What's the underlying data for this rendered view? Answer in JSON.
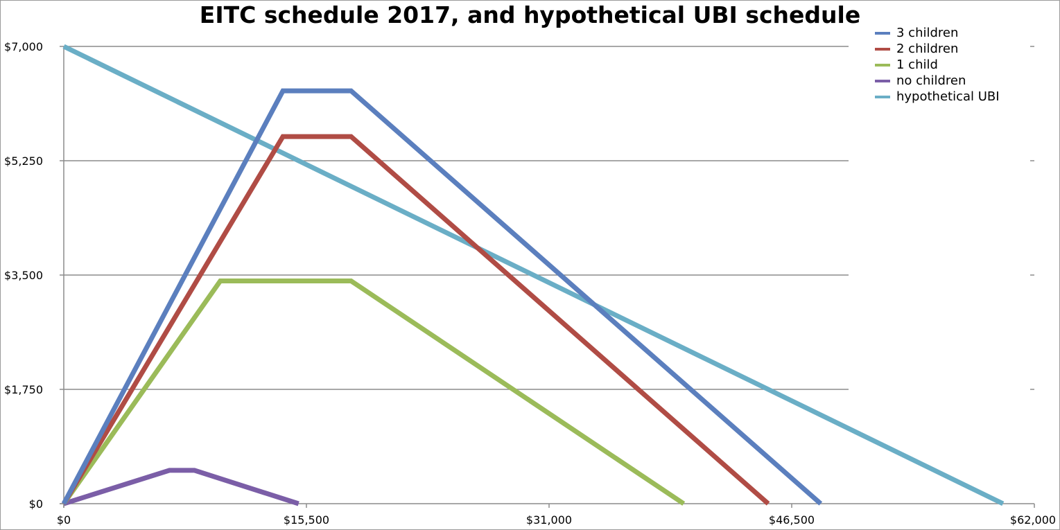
{
  "chart_data": {
    "type": "line",
    "title": "EITC schedule 2017, and hypothetical UBI schedule",
    "xlabel": "",
    "ylabel": "",
    "xlim": [
      0,
      62000
    ],
    "ylim": [
      0,
      7000
    ],
    "x_ticks": [
      0,
      15500,
      31000,
      46500,
      62000
    ],
    "x_tick_labels": [
      "$0",
      "$15,500",
      "$31,000",
      "$46,500",
      "$62,000"
    ],
    "y_ticks": [
      0,
      1750,
      3500,
      5250,
      7000
    ],
    "y_tick_labels": [
      "$0",
      "$1,750",
      "$3,500",
      "$5,250",
      "$7,000"
    ],
    "grid": "horizontal",
    "legend_position": "top-right",
    "series": [
      {
        "name": "3 children",
        "color": "#5b7fbe",
        "points": [
          [
            0,
            0
          ],
          [
            14000,
            6320
          ],
          [
            18350,
            6320
          ],
          [
            48350,
            0
          ]
        ]
      },
      {
        "name": "2 children",
        "color": "#b04c45",
        "points": [
          [
            0,
            0
          ],
          [
            14000,
            5620
          ],
          [
            18350,
            5620
          ],
          [
            45000,
            0
          ]
        ]
      },
      {
        "name": "1 child",
        "color": "#9bbb59",
        "points": [
          [
            0,
            0
          ],
          [
            10000,
            3410
          ],
          [
            18350,
            3410
          ],
          [
            39600,
            0
          ]
        ]
      },
      {
        "name": "no children",
        "color": "#7b5ea7",
        "points": [
          [
            0,
            0
          ],
          [
            6750,
            510
          ],
          [
            8350,
            510
          ],
          [
            15000,
            0
          ]
        ]
      },
      {
        "name": "hypothetical UBI",
        "color": "#6aaec6",
        "points": [
          [
            0,
            7000
          ],
          [
            60000,
            0
          ]
        ]
      }
    ]
  }
}
